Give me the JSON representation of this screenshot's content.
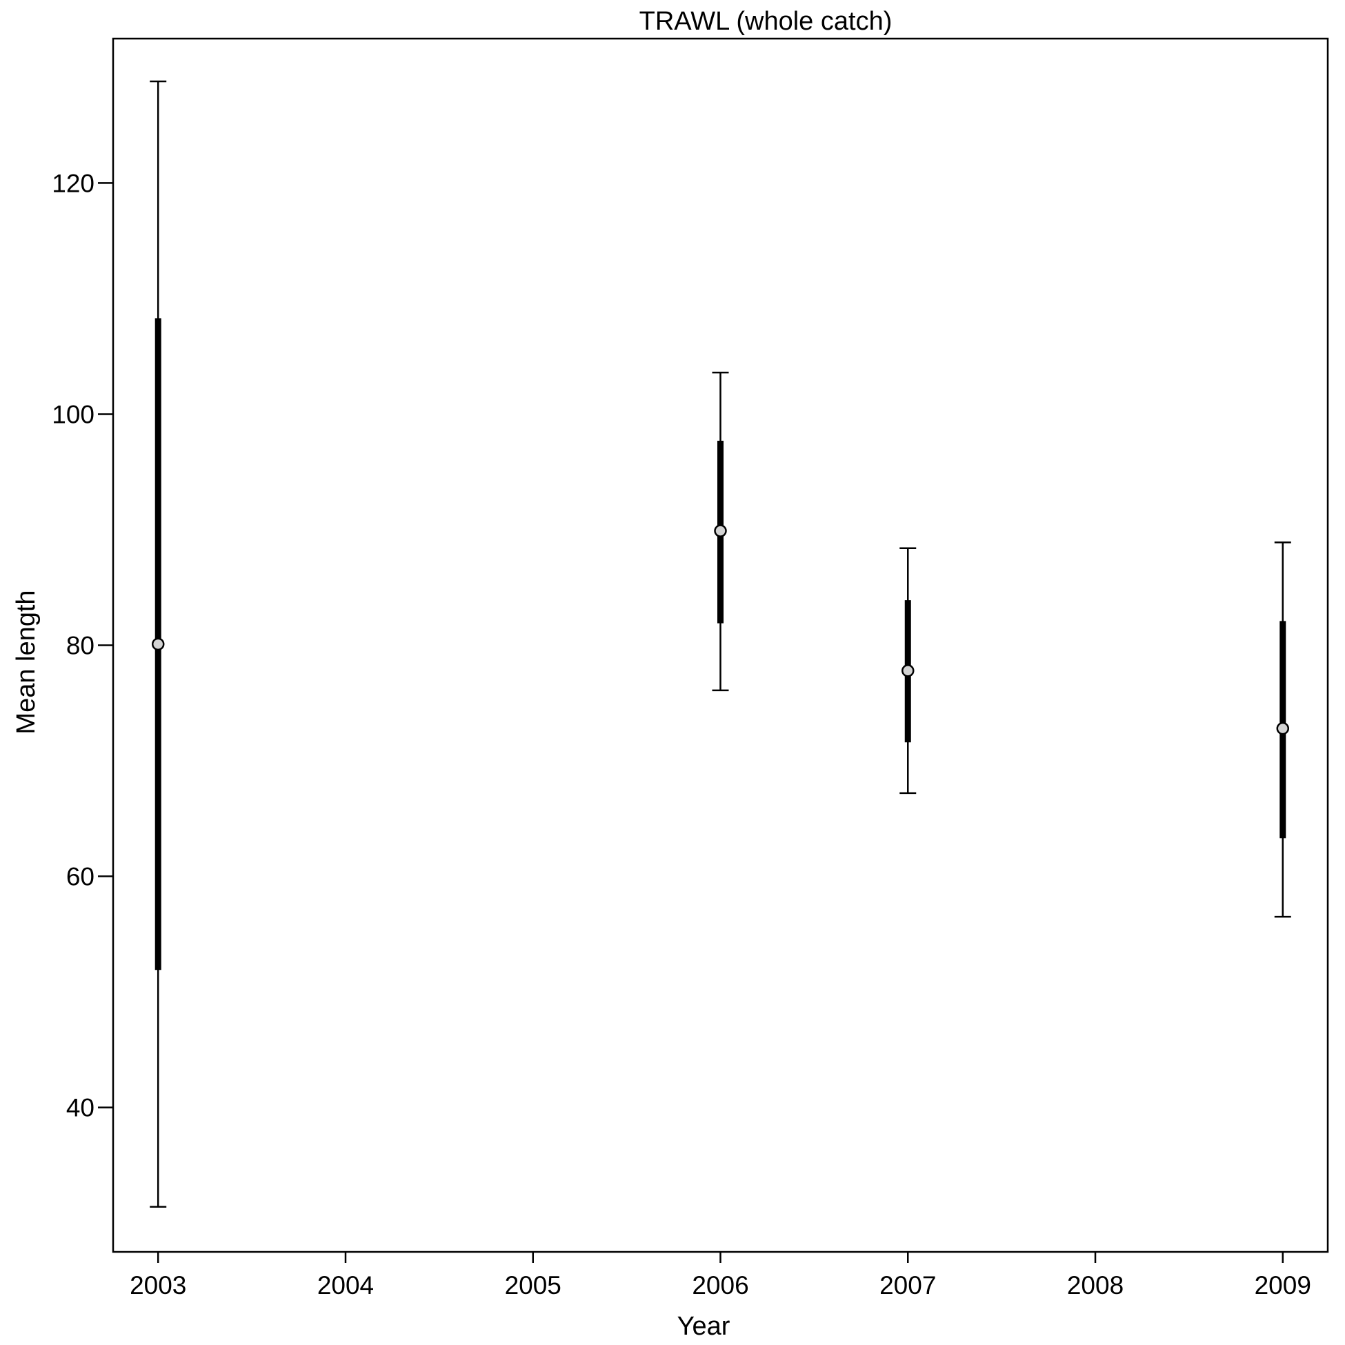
{
  "chart_data": {
    "type": "scatter",
    "title": "TRAWL (whole catch)",
    "xlabel": "Year",
    "ylabel": "Mean length",
    "xlim": [
      2002.76,
      2009.24
    ],
    "ylim": [
      27.5,
      132.5
    ],
    "x_ticks": [
      "2003",
      "2004",
      "2005",
      "2006",
      "2007",
      "2008",
      "2009"
    ],
    "y_ticks": [
      "40",
      "60",
      "80",
      "100",
      "120"
    ],
    "grid": false,
    "series": [
      {
        "points": [
          {
            "x": 2003,
            "mean": 80.1,
            "inner_low": 51.9,
            "inner_high": 108.3,
            "outer_low": 31.4,
            "outer_high": 128.8
          },
          {
            "x": 2006,
            "mean": 89.9,
            "inner_low": 81.9,
            "inner_high": 97.7,
            "outer_low": 76.1,
            "outer_high": 103.6
          },
          {
            "x": 2007,
            "mean": 77.8,
            "inner_low": 71.6,
            "inner_high": 83.9,
            "outer_low": 67.2,
            "outer_high": 88.4
          },
          {
            "x": 2009,
            "mean": 72.8,
            "inner_low": 63.3,
            "inner_high": 82.1,
            "outer_low": 56.5,
            "outer_high": 88.9
          }
        ]
      }
    ]
  }
}
